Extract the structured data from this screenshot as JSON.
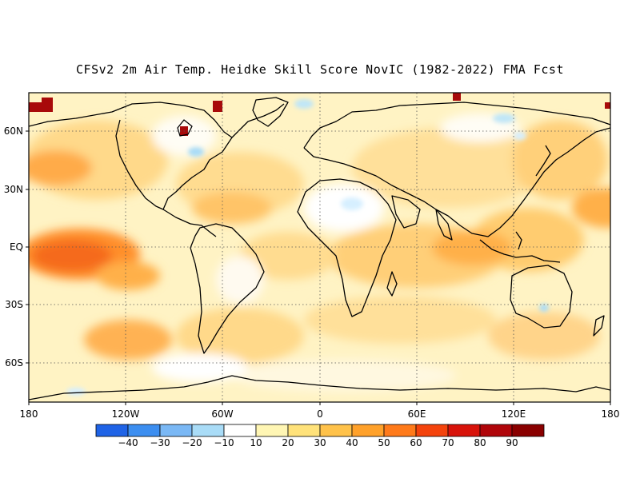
{
  "title": "CFSv2 2m Air Temp. Heidke Skill Score NovIC (1982-2022) FMA Fcst",
  "map": {
    "lat_ticks": [
      "60N",
      "30N",
      "EQ",
      "30S",
      "60S"
    ],
    "lon_ticks": [
      "180",
      "120W",
      "60W",
      "0",
      "60E",
      "120E",
      "180"
    ],
    "grid": "dotted"
  },
  "colorbar": {
    "labels": [
      "-40",
      "-30",
      "-20",
      "-10",
      "10",
      "20",
      "30",
      "40",
      "50",
      "60",
      "70",
      "80",
      "90"
    ],
    "colors": [
      "#1f63e6",
      "#3c8ef0",
      "#7ab8f5",
      "#a9dcf7",
      "#ffffff",
      "#fff6b4",
      "#ffe27a",
      "#ffc24a",
      "#ffa12a",
      "#ff7a1a",
      "#f4430c",
      "#d8130a",
      "#b0050a",
      "#8a0000"
    ]
  }
}
